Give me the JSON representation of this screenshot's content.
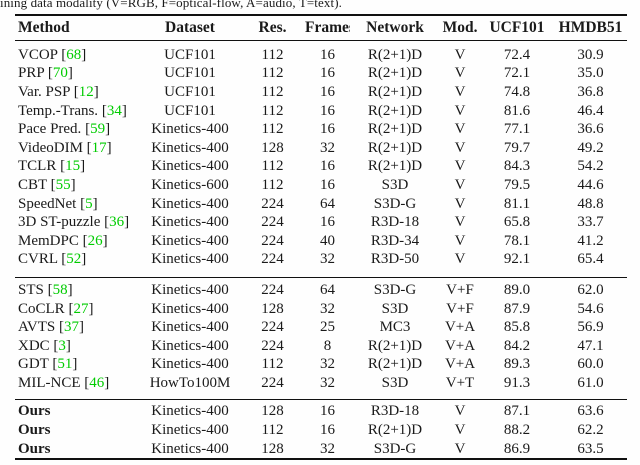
{
  "caption": "ining data modality (V=RGB, F=optical-flow, A=audio, T=text).",
  "colors": {
    "citation": "#00cc00",
    "text": "#1a1a1a",
    "rule": "#111111",
    "background": "#fefefe"
  },
  "table": {
    "columns": [
      "Method",
      "Dataset",
      "Res.",
      "Frames",
      "Network",
      "Mod.",
      "UCF101",
      "HMDB51"
    ],
    "sections": [
      {
        "bold": false,
        "rows": [
          {
            "method": "VCOP",
            "cite": "68",
            "dataset": "UCF101",
            "res": "112",
            "frames": "16",
            "network": "R(2+1)D",
            "mod": "V",
            "ucf101": "72.4",
            "hmdb51": "30.9"
          },
          {
            "method": "PRP",
            "cite": "70",
            "dataset": "UCF101",
            "res": "112",
            "frames": "16",
            "network": "R(2+1)D",
            "mod": "V",
            "ucf101": "72.1",
            "hmdb51": "35.0"
          },
          {
            "method": "Var. PSP",
            "cite": "12",
            "dataset": "UCF101",
            "res": "112",
            "frames": "16",
            "network": "R(2+1)D",
            "mod": "V",
            "ucf101": "74.8",
            "hmdb51": "36.8"
          },
          {
            "method": "Temp.-Trans.",
            "cite": "34",
            "dataset": "UCF101",
            "res": "112",
            "frames": "16",
            "network": "R(2+1)D",
            "mod": "V",
            "ucf101": "81.6",
            "hmdb51": "46.4"
          },
          {
            "method": "Pace Pred.",
            "cite": "59",
            "dataset": "Kinetics-400",
            "res": "112",
            "frames": "16",
            "network": "R(2+1)D",
            "mod": "V",
            "ucf101": "77.1",
            "hmdb51": "36.6"
          },
          {
            "method": "VideoDIM",
            "cite": "17",
            "dataset": "Kinetics-400",
            "res": "128",
            "frames": "32",
            "network": "R(2+1)D",
            "mod": "V",
            "ucf101": "79.7",
            "hmdb51": "49.2"
          },
          {
            "method": "TCLR",
            "cite": "15",
            "dataset": "Kinetics-400",
            "res": "112",
            "frames": "16",
            "network": "R(2+1)D",
            "mod": "V",
            "ucf101": "84.3",
            "hmdb51": "54.2"
          },
          {
            "method": "CBT",
            "cite": "55",
            "dataset": "Kinetics-600",
            "res": "112",
            "frames": "16",
            "network": "S3D",
            "mod": "V",
            "ucf101": "79.5",
            "hmdb51": "44.6"
          },
          {
            "method": "SpeedNet",
            "cite": "5",
            "dataset": "Kinetics-400",
            "res": "224",
            "frames": "64",
            "network": "S3D-G",
            "mod": "V",
            "ucf101": "81.1",
            "hmdb51": "48.8"
          },
          {
            "method": "3D ST-puzzle",
            "cite": "36",
            "dataset": "Kinetics-400",
            "res": "224",
            "frames": "16",
            "network": "R3D-18",
            "mod": "V",
            "ucf101": "65.8",
            "hmdb51": "33.7"
          },
          {
            "method": "MemDPC",
            "cite": "26",
            "dataset": "Kinetics-400",
            "res": "224",
            "frames": "40",
            "network": "R3D-34",
            "mod": "V",
            "ucf101": "78.1",
            "hmdb51": "41.2"
          },
          {
            "method": "CVRL",
            "cite": "52",
            "dataset": "Kinetics-400",
            "res": "224",
            "frames": "32",
            "network": "R3D-50",
            "mod": "V",
            "ucf101": "92.1",
            "hmdb51": "65.4"
          }
        ]
      },
      {
        "bold": false,
        "rows": [
          {
            "method": "STS",
            "cite": "58",
            "dataset": "Kinetics-400",
            "res": "224",
            "frames": "64",
            "network": "S3D-G",
            "mod": "V+F",
            "ucf101": "89.0",
            "hmdb51": "62.0"
          },
          {
            "method": "CoCLR",
            "cite": "27",
            "dataset": "Kinetics-400",
            "res": "128",
            "frames": "32",
            "network": "S3D",
            "mod": "V+F",
            "ucf101": "87.9",
            "hmdb51": "54.6"
          },
          {
            "method": "AVTS",
            "cite": "37",
            "dataset": "Kinetics-400",
            "res": "224",
            "frames": "25",
            "network": "MC3",
            "mod": "V+A",
            "ucf101": "85.8",
            "hmdb51": "56.9"
          },
          {
            "method": "XDC",
            "cite": "3",
            "dataset": "Kinetics-400",
            "res": "224",
            "frames": "8",
            "network": "R(2+1)D",
            "mod": "V+A",
            "ucf101": "84.2",
            "hmdb51": "47.1"
          },
          {
            "method": "GDT",
            "cite": "51",
            "dataset": "Kinetics-400",
            "res": "112",
            "frames": "32",
            "network": "R(2+1)D",
            "mod": "V+A",
            "ucf101": "89.3",
            "hmdb51": "60.0"
          },
          {
            "method": "MIL-NCE",
            "cite": "46",
            "dataset": "HowTo100M",
            "res": "224",
            "frames": "32",
            "network": "S3D",
            "mod": "V+T",
            "ucf101": "91.3",
            "hmdb51": "61.0"
          }
        ]
      },
      {
        "bold": true,
        "rows": [
          {
            "method": "Ours",
            "cite": null,
            "dataset": "Kinetics-400",
            "res": "128",
            "frames": "16",
            "network": "R3D-18",
            "mod": "V",
            "ucf101": "87.1",
            "hmdb51": "63.6"
          },
          {
            "method": "Ours",
            "cite": null,
            "dataset": "Kinetics-400",
            "res": "112",
            "frames": "16",
            "network": "R(2+1)D",
            "mod": "V",
            "ucf101": "88.2",
            "hmdb51": "62.2"
          },
          {
            "method": "Ours",
            "cite": null,
            "dataset": "Kinetics-400",
            "res": "128",
            "frames": "32",
            "network": "S3D-G",
            "mod": "V",
            "ucf101": "86.9",
            "hmdb51": "63.5"
          }
        ]
      }
    ]
  }
}
